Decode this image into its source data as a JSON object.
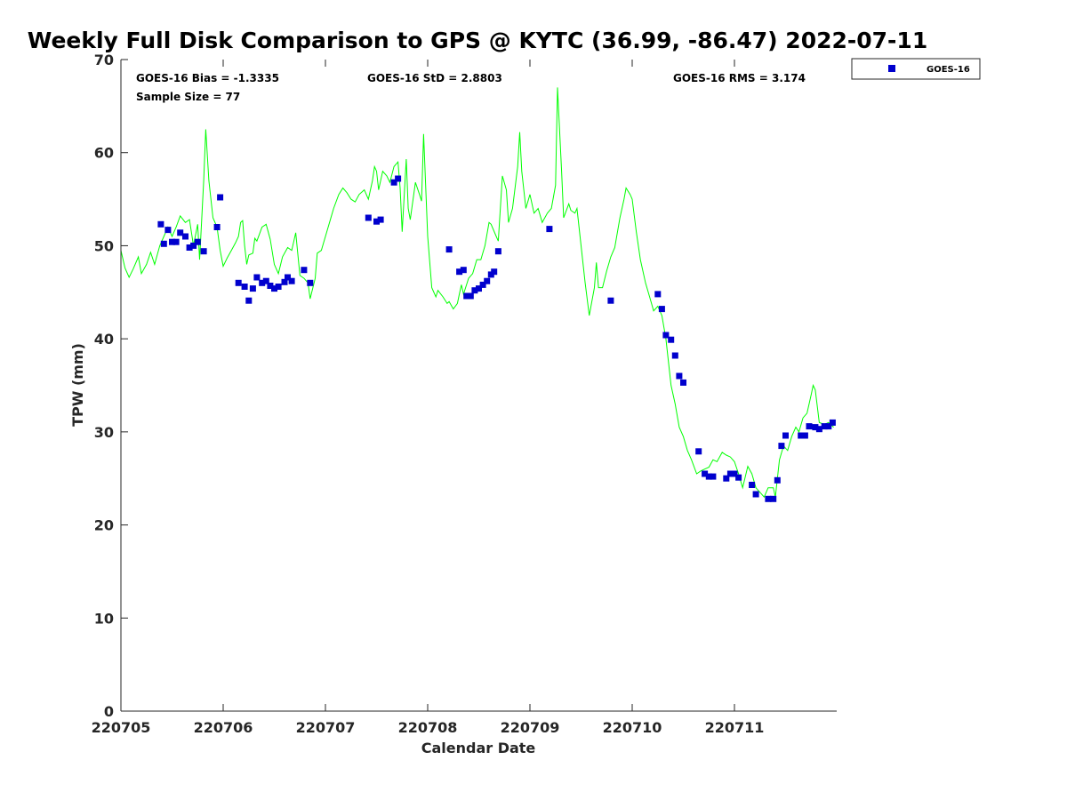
{
  "chart_data": {
    "type": "line",
    "title": "Weekly Full Disk Comparison to GPS @ KYTC (36.99, -86.47) 2022-07-11",
    "xlabel": "Calendar Date",
    "ylabel": "TPW (mm)",
    "xlim": [
      220705,
      220712
    ],
    "ylim": [
      0,
      70
    ],
    "x_ticks": [
      "220705",
      "220706",
      "220707",
      "220708",
      "220709",
      "220710",
      "220711"
    ],
    "y_ticks": [
      "0",
      "10",
      "20",
      "30",
      "40",
      "50",
      "60",
      "70"
    ],
    "grid": false,
    "legend_position": "top-right",
    "stats": {
      "bias": "GOES-16 Bias = -1.3335",
      "std": "GOES-16 StD = 2.8803",
      "rms": "GOES-16 RMS = 3.174",
      "sample": "Sample Size = 77"
    },
    "series": [
      {
        "kind": "line",
        "color": "#00ff00",
        "points": [
          [
            220705.0,
            49.5
          ],
          [
            220705.04,
            47.6
          ],
          [
            220705.08,
            46.6
          ],
          [
            220705.12,
            47.5
          ],
          [
            220705.17,
            48.8
          ],
          [
            220705.2,
            47.0
          ],
          [
            220705.25,
            48.0
          ],
          [
            220705.29,
            49.3
          ],
          [
            220705.33,
            48.0
          ],
          [
            220705.38,
            50.0
          ],
          [
            220705.42,
            51.0
          ],
          [
            220705.46,
            52.0
          ],
          [
            220705.5,
            51.0
          ],
          [
            220705.54,
            52.0
          ],
          [
            220705.58,
            53.2
          ],
          [
            220705.63,
            52.5
          ],
          [
            220705.67,
            52.8
          ],
          [
            220705.71,
            50.0
          ],
          [
            220705.75,
            52.3
          ],
          [
            220705.77,
            48.5
          ],
          [
            220705.81,
            57.0
          ],
          [
            220705.83,
            62.5
          ],
          [
            220705.86,
            57.0
          ],
          [
            220705.9,
            53.0
          ],
          [
            220705.94,
            52.0
          ],
          [
            220705.97,
            49.5
          ],
          [
            220706.0,
            47.8
          ],
          [
            220706.04,
            48.7
          ],
          [
            220706.08,
            49.5
          ],
          [
            220706.12,
            50.3
          ],
          [
            220706.15,
            51.0
          ],
          [
            220706.17,
            52.5
          ],
          [
            220706.19,
            52.7
          ],
          [
            220706.21,
            50.0
          ],
          [
            220706.23,
            48.0
          ],
          [
            220706.25,
            49.0
          ],
          [
            220706.29,
            49.2
          ],
          [
            220706.31,
            50.8
          ],
          [
            220706.33,
            50.5
          ],
          [
            220706.38,
            52.0
          ],
          [
            220706.42,
            52.3
          ],
          [
            220706.46,
            50.7
          ],
          [
            220706.5,
            48.0
          ],
          [
            220706.54,
            47.0
          ],
          [
            220706.58,
            48.8
          ],
          [
            220706.63,
            49.8
          ],
          [
            220706.67,
            49.5
          ],
          [
            220706.71,
            51.4
          ],
          [
            220706.75,
            46.8
          ],
          [
            220706.79,
            46.5
          ],
          [
            220706.83,
            46.0
          ],
          [
            220706.85,
            44.3
          ],
          [
            220706.9,
            46.5
          ],
          [
            220706.92,
            49.2
          ],
          [
            220706.96,
            49.5
          ],
          [
            220707.0,
            51.0
          ],
          [
            220707.04,
            52.5
          ],
          [
            220707.08,
            54.0
          ],
          [
            220707.13,
            55.5
          ],
          [
            220707.17,
            56.2
          ],
          [
            220707.21,
            55.7
          ],
          [
            220707.25,
            55.0
          ],
          [
            220707.29,
            54.7
          ],
          [
            220707.33,
            55.5
          ],
          [
            220707.38,
            56.0
          ],
          [
            220707.42,
            55.0
          ],
          [
            220707.46,
            57.0
          ],
          [
            220707.48,
            58.5
          ],
          [
            220707.5,
            58.0
          ],
          [
            220707.52,
            56.0
          ],
          [
            220707.56,
            58.0
          ],
          [
            220707.6,
            57.5
          ],
          [
            220707.63,
            56.8
          ],
          [
            220707.67,
            58.5
          ],
          [
            220707.71,
            59.0
          ],
          [
            220707.73,
            56.2
          ],
          [
            220707.75,
            51.5
          ],
          [
            220707.79,
            59.3
          ],
          [
            220707.81,
            54.0
          ],
          [
            220707.83,
            52.8
          ],
          [
            220707.88,
            56.8
          ],
          [
            220707.92,
            55.5
          ],
          [
            220707.94,
            54.8
          ],
          [
            220707.96,
            62.0
          ],
          [
            220708.0,
            51.0
          ],
          [
            220708.04,
            45.5
          ],
          [
            220708.08,
            44.5
          ],
          [
            220708.1,
            45.2
          ],
          [
            220708.15,
            44.5
          ],
          [
            220708.19,
            43.8
          ],
          [
            220708.21,
            44.0
          ],
          [
            220708.25,
            43.2
          ],
          [
            220708.29,
            43.8
          ],
          [
            220708.31,
            44.8
          ],
          [
            220708.33,
            45.8
          ],
          [
            220708.35,
            44.8
          ],
          [
            220708.4,
            46.5
          ],
          [
            220708.44,
            47.0
          ],
          [
            220708.48,
            48.5
          ],
          [
            220708.52,
            48.5
          ],
          [
            220708.56,
            50.0
          ],
          [
            220708.6,
            52.5
          ],
          [
            220708.62,
            52.3
          ],
          [
            220708.67,
            51.0
          ],
          [
            220708.69,
            50.5
          ],
          [
            220708.73,
            57.5
          ],
          [
            220708.77,
            56.0
          ],
          [
            220708.79,
            52.5
          ],
          [
            220708.83,
            54.0
          ],
          [
            220708.88,
            58.5
          ],
          [
            220708.9,
            62.2
          ],
          [
            220708.92,
            58.0
          ],
          [
            220708.96,
            54.0
          ],
          [
            220709.0,
            55.5
          ],
          [
            220709.04,
            53.5
          ],
          [
            220709.08,
            54.0
          ],
          [
            220709.12,
            52.5
          ],
          [
            220709.17,
            53.5
          ],
          [
            220709.21,
            54.0
          ],
          [
            220709.25,
            56.5
          ],
          [
            220709.27,
            67.0
          ],
          [
            220709.31,
            58.0
          ],
          [
            220709.33,
            53.0
          ],
          [
            220709.38,
            54.5
          ],
          [
            220709.4,
            53.8
          ],
          [
            220709.44,
            53.5
          ],
          [
            220709.46,
            54.0
          ],
          [
            220709.5,
            50.0
          ],
          [
            220709.54,
            46.0
          ],
          [
            220709.58,
            42.5
          ],
          [
            220709.63,
            45.5
          ],
          [
            220709.65,
            48.2
          ],
          [
            220709.67,
            45.5
          ],
          [
            220709.71,
            45.5
          ],
          [
            220709.75,
            47.3
          ],
          [
            220709.79,
            48.8
          ],
          [
            220709.83,
            49.8
          ],
          [
            220709.88,
            53.0
          ],
          [
            220709.92,
            55.0
          ],
          [
            220709.94,
            56.2
          ],
          [
            220709.98,
            55.5
          ],
          [
            220710.0,
            55.0
          ],
          [
            220710.04,
            51.5
          ],
          [
            220710.08,
            48.5
          ],
          [
            220710.13,
            46.0
          ],
          [
            220710.17,
            44.5
          ],
          [
            220710.21,
            43.0
          ],
          [
            220710.25,
            43.5
          ],
          [
            220710.29,
            42.5
          ],
          [
            220710.33,
            40.0
          ],
          [
            220710.38,
            35.0
          ],
          [
            220710.42,
            33.0
          ],
          [
            220710.46,
            30.5
          ],
          [
            220710.5,
            29.5
          ],
          [
            220710.54,
            28.0
          ],
          [
            220710.58,
            27.0
          ],
          [
            220710.63,
            25.5
          ],
          [
            220710.67,
            25.8
          ],
          [
            220710.71,
            26.0
          ],
          [
            220710.75,
            26.2
          ],
          [
            220710.79,
            27.0
          ],
          [
            220710.83,
            26.8
          ],
          [
            220710.88,
            27.8
          ],
          [
            220710.92,
            27.5
          ],
          [
            220710.96,
            27.3
          ],
          [
            220711.0,
            26.8
          ],
          [
            220711.04,
            25.5
          ],
          [
            220711.08,
            24.0
          ],
          [
            220711.13,
            26.3
          ],
          [
            220711.17,
            25.5
          ],
          [
            220711.21,
            24.0
          ],
          [
            220711.25,
            23.5
          ],
          [
            220711.29,
            23.0
          ],
          [
            220711.33,
            24.0
          ],
          [
            220711.38,
            24.0
          ],
          [
            220711.4,
            23.0
          ],
          [
            220711.44,
            27.0
          ],
          [
            220711.48,
            28.5
          ],
          [
            220711.52,
            28.0
          ],
          [
            220711.56,
            29.5
          ],
          [
            220711.6,
            30.5
          ],
          [
            220711.63,
            30.0
          ],
          [
            220711.67,
            31.5
          ],
          [
            220711.71,
            32.0
          ],
          [
            220711.75,
            34.0
          ],
          [
            220711.77,
            35.0
          ],
          [
            220711.79,
            34.5
          ],
          [
            220711.83,
            31.0
          ],
          [
            220711.88,
            30.8
          ],
          [
            220711.92,
            31.0
          ],
          [
            220711.97,
            30.5
          ]
        ]
      },
      {
        "kind": "scatter",
        "name": "GOES-16",
        "color": "#0000cd",
        "points": [
          [
            220705.39,
            52.3
          ],
          [
            220705.42,
            50.2
          ],
          [
            220705.46,
            51.7
          ],
          [
            220705.5,
            50.4
          ],
          [
            220705.54,
            50.4
          ],
          [
            220705.58,
            51.4
          ],
          [
            220705.63,
            51.0
          ],
          [
            220705.67,
            49.8
          ],
          [
            220705.71,
            50.0
          ],
          [
            220705.75,
            50.4
          ],
          [
            220705.81,
            49.4
          ],
          [
            220705.94,
            52.0
          ],
          [
            220705.97,
            55.2
          ],
          [
            220706.15,
            46.0
          ],
          [
            220706.21,
            45.6
          ],
          [
            220706.25,
            44.1
          ],
          [
            220706.29,
            45.4
          ],
          [
            220706.33,
            46.6
          ],
          [
            220706.38,
            46.0
          ],
          [
            220706.42,
            46.2
          ],
          [
            220706.46,
            45.7
          ],
          [
            220706.5,
            45.4
          ],
          [
            220706.54,
            45.6
          ],
          [
            220706.6,
            46.1
          ],
          [
            220706.63,
            46.6
          ],
          [
            220706.67,
            46.2
          ],
          [
            220706.79,
            47.4
          ],
          [
            220706.85,
            46.0
          ],
          [
            220707.42,
            53.0
          ],
          [
            220707.5,
            52.6
          ],
          [
            220707.54,
            52.8
          ],
          [
            220707.67,
            56.8
          ],
          [
            220707.71,
            57.2
          ],
          [
            220708.21,
            49.6
          ],
          [
            220708.31,
            47.2
          ],
          [
            220708.35,
            47.4
          ],
          [
            220708.38,
            44.6
          ],
          [
            220708.42,
            44.6
          ],
          [
            220708.46,
            45.2
          ],
          [
            220708.5,
            45.4
          ],
          [
            220708.54,
            45.8
          ],
          [
            220708.58,
            46.2
          ],
          [
            220708.62,
            46.9
          ],
          [
            220708.65,
            47.2
          ],
          [
            220708.69,
            49.4
          ],
          [
            220709.19,
            51.8
          ],
          [
            220709.79,
            44.1
          ],
          [
            220710.25,
            44.8
          ],
          [
            220710.29,
            43.2
          ],
          [
            220710.33,
            40.4
          ],
          [
            220710.38,
            39.9
          ],
          [
            220710.42,
            38.2
          ],
          [
            220710.46,
            36.0
          ],
          [
            220710.5,
            35.3
          ],
          [
            220710.65,
            27.9
          ],
          [
            220710.71,
            25.5
          ],
          [
            220710.75,
            25.2
          ],
          [
            220710.79,
            25.2
          ],
          [
            220710.92,
            25.0
          ],
          [
            220710.96,
            25.5
          ],
          [
            220711.0,
            25.5
          ],
          [
            220711.04,
            25.1
          ],
          [
            220711.17,
            24.3
          ],
          [
            220711.21,
            23.3
          ],
          [
            220711.33,
            22.8
          ],
          [
            220711.38,
            22.8
          ],
          [
            220711.42,
            24.8
          ],
          [
            220711.46,
            28.5
          ],
          [
            220711.5,
            29.6
          ],
          [
            220711.65,
            29.6
          ],
          [
            220711.69,
            29.6
          ],
          [
            220711.73,
            30.6
          ],
          [
            220711.79,
            30.5
          ],
          [
            220711.83,
            30.3
          ],
          [
            220711.88,
            30.6
          ],
          [
            220711.92,
            30.6
          ],
          [
            220711.96,
            31.0
          ]
        ]
      }
    ]
  }
}
